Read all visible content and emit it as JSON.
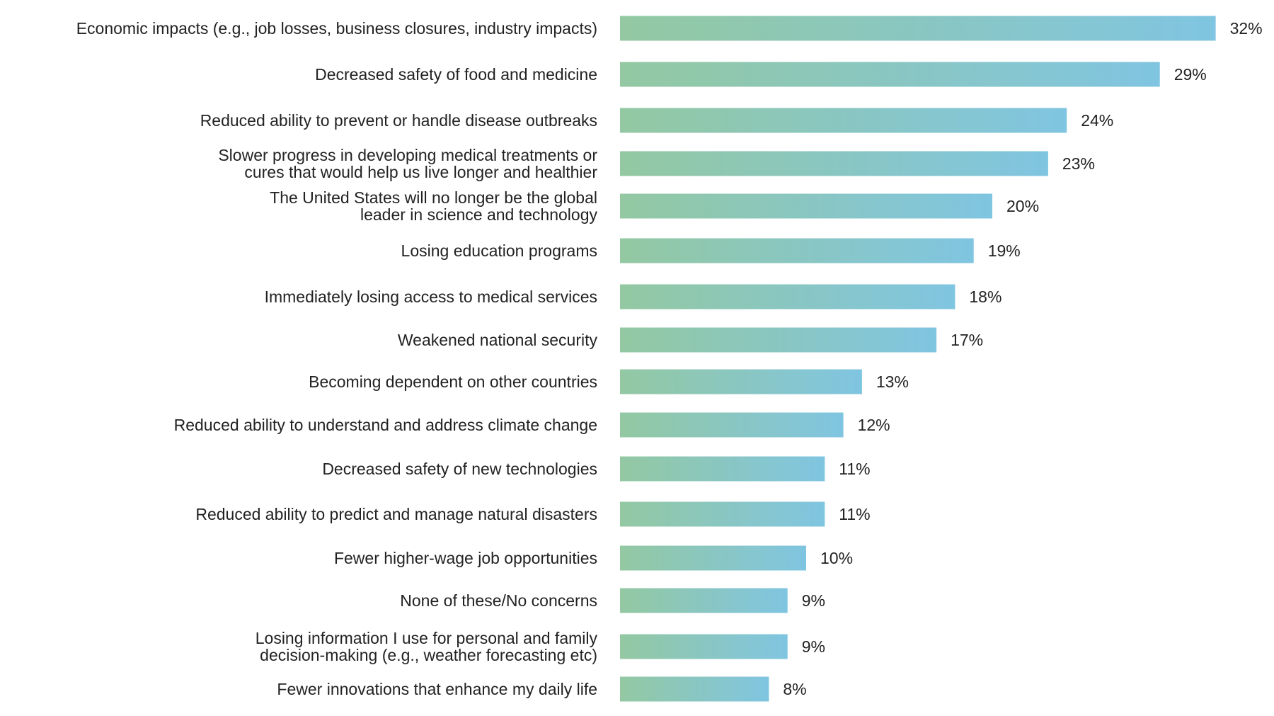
{
  "chart_data": {
    "type": "bar",
    "orientation": "horizontal",
    "title": "",
    "xlabel": "",
    "ylabel": "",
    "xlim": [
      0,
      32
    ],
    "grid": false,
    "value_suffix": "%",
    "categories": [
      [
        "Economic impacts (e.g., job losses, business closures, industry impacts)"
      ],
      [
        "Decreased safety of food and medicine"
      ],
      [
        "Reduced ability to prevent or handle disease outbreaks"
      ],
      [
        "Slower progress in developing medical treatments or",
        "cures that would help us live longer and healthier"
      ],
      [
        "The United States will no longer be the global",
        "leader in science and technology"
      ],
      [
        "Losing education programs"
      ],
      [
        "Immediately losing access to medical services"
      ],
      [
        "Weakened national security"
      ],
      [
        "Becoming dependent on other countries"
      ],
      [
        "Reduced ability to understand and address climate change"
      ],
      [
        "Decreased safety of new technologies"
      ],
      [
        "Reduced ability to predict and manage natural disasters"
      ],
      [
        "Fewer higher-wage job opportunities"
      ],
      [
        "None of these/No concerns"
      ],
      [
        "Losing information I use for personal and family",
        "decision-making (e.g., weather forecasting etc)"
      ],
      [
        "Fewer innovations that enhance my daily life"
      ]
    ],
    "values": [
      32,
      29,
      24,
      23,
      20,
      19,
      18,
      17,
      13,
      12,
      11,
      11,
      10,
      9,
      9,
      8
    ],
    "value_labels": [
      "32%",
      "29%",
      "24%",
      "23%",
      "20%",
      "19%",
      "18%",
      "17%",
      "13%",
      "12%",
      "11%",
      "11%",
      "10%",
      "9%",
      "9%",
      "8%"
    ],
    "colors": {
      "gradient_start": "#93c8a2",
      "gradient_end": "#80c5e1",
      "text": "#222222"
    }
  }
}
